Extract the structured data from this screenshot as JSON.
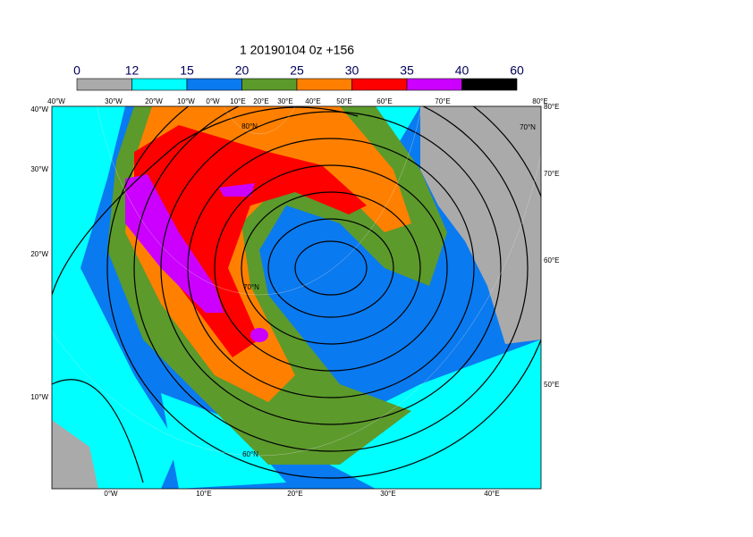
{
  "title": "1 20190104 0z +156",
  "legend": {
    "levels": [
      0,
      12,
      15,
      20,
      25,
      30,
      35,
      40,
      60
    ],
    "colors": [
      "#aaaaaa",
      "#00ffff",
      "#0a7af0",
      "#5c9a2c",
      "#ff8000",
      "#ff0000",
      "#cc00ff",
      "#000000"
    ]
  },
  "labels": {
    "top": [
      "40°W",
      "30°W",
      "20°W",
      "10°W",
      "0°W",
      "10°E",
      "20°E",
      "30°E",
      "40°E",
      "50°E",
      "60°E",
      "70°E",
      "80°E"
    ],
    "left": [
      "40°W",
      "30°W",
      "20°W",
      "10°W"
    ],
    "bottom": [
      "0°W",
      "10°E",
      "20°E",
      "30°E",
      "40°E"
    ],
    "right": [
      "80°E",
      "70°E",
      "60°E",
      "50°E"
    ],
    "inner": [
      "80°N",
      "70°N",
      "60°N",
      "70°N"
    ]
  }
}
